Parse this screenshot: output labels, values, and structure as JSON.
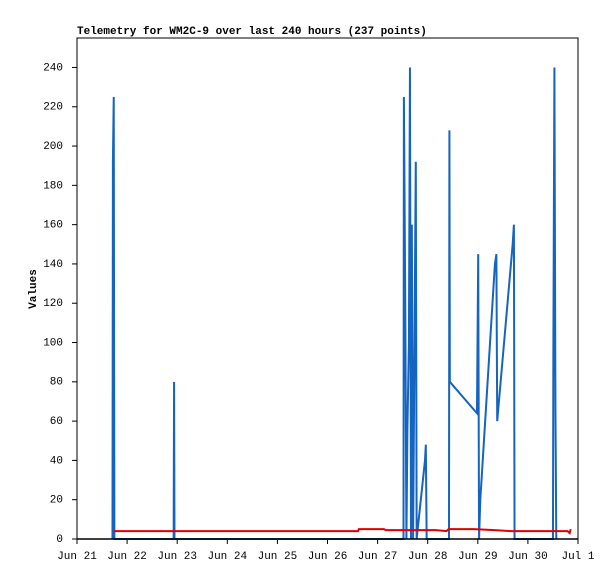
{
  "chart_data": {
    "type": "line",
    "title": "Telemetry for WM2C-9 over last 240 hours (237 points)",
    "y_label": "Values",
    "xlim": [
      0,
      240
    ],
    "ylim": [
      0,
      255
    ],
    "xticks": [
      {
        "value": 0,
        "label": "Jun 21"
      },
      {
        "value": 24,
        "label": "Jun 22"
      },
      {
        "value": 48,
        "label": "Jun 23"
      },
      {
        "value": 72,
        "label": "Jun 24"
      },
      {
        "value": 96,
        "label": "Jun 25"
      },
      {
        "value": 120,
        "label": "Jun 26"
      },
      {
        "value": 144,
        "label": "Jun 27"
      },
      {
        "value": 168,
        "label": "Jun 28"
      },
      {
        "value": 192,
        "label": "Jun 29"
      },
      {
        "value": 216,
        "label": "Jun 30"
      },
      {
        "value": 240,
        "label": "Jul 1"
      }
    ],
    "yticks": [
      0,
      20,
      40,
      60,
      80,
      100,
      120,
      140,
      160,
      180,
      200,
      220,
      240
    ],
    "series": [
      {
        "color": "#1565c0",
        "x": [
          17.0,
          17.2,
          17.6,
          17.9,
          46.3,
          46.5,
          46.7,
          156.4,
          156.6,
          157.3,
          157.8,
          158.3,
          159.0,
          159.5,
          160.0,
          160.4,
          161.0,
          162.3,
          162.7,
          166.7,
          167.1,
          167.5,
          178.2,
          178.4,
          178.6,
          191.6,
          192.2,
          192.6,
          193.2,
          200.2,
          200.9,
          201.3,
          208.7,
          209.3,
          209.6,
          228.0,
          228.2,
          228.7,
          229.2,
          229.6
        ],
        "values": [
          0,
          192,
          225,
          0,
          0,
          80,
          0,
          0,
          225,
          112,
          0,
          57,
          100,
          240,
          0,
          160,
          0,
          192,
          0,
          40,
          48,
          0,
          0,
          208,
          80,
          64,
          145,
          0,
          20,
          140,
          145,
          60,
          150,
          160,
          0,
          0,
          97,
          240,
          64,
          0
        ]
      },
      {
        "color": "#e00000",
        "x": [
          17.6,
          134.6,
          135.0,
          147.0,
          148.0,
          160.0,
          172.0,
          177.0,
          178.0,
          190.0,
          200.0,
          208.0,
          220.0,
          235.0,
          236.0,
          236.5
        ],
        "values": [
          4,
          4,
          5,
          5,
          4.5,
          4.5,
          4.5,
          4,
          5,
          5,
          4.5,
          4,
          4,
          4,
          3,
          5
        ]
      }
    ]
  }
}
